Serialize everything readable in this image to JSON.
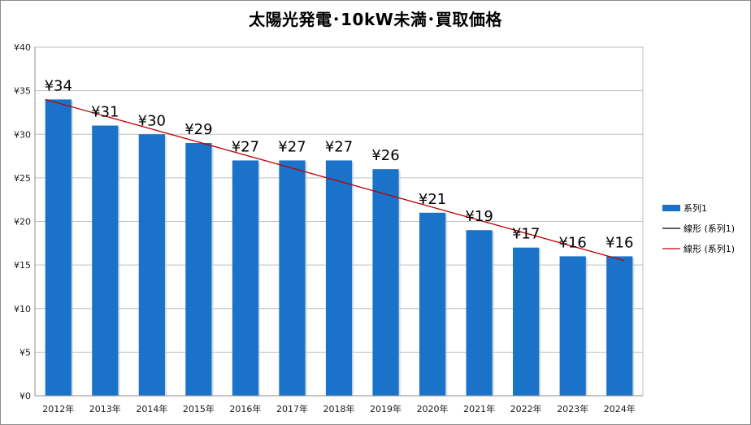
{
  "chart_data": {
    "type": "bar",
    "title": "太陽光発電･10kW未満･買取価格",
    "categories": [
      "2012年",
      "2013年",
      "2014年",
      "2015年",
      "2016年",
      "2017年",
      "2018年",
      "2019年",
      "2020年",
      "2021年",
      "2022年",
      "2023年",
      "2024年"
    ],
    "series": [
      {
        "name": "系列1",
        "values": [
          34,
          31,
          30,
          29,
          27,
          27,
          27,
          26,
          21,
          19,
          17,
          16,
          16
        ],
        "color": "#1a73c8"
      }
    ],
    "data_labels": [
      "¥34",
      "¥31",
      "¥30",
      "¥29",
      "¥27",
      "¥27",
      "¥27",
      "¥26",
      "¥21",
      "¥19",
      "¥17",
      "¥16",
      "¥16"
    ],
    "trendlines": [
      {
        "name": "線形 (系列1)",
        "color": "#000000"
      },
      {
        "name": "線形 (系列1)",
        "color": "#c00000",
        "start_value": 34,
        "end_value": 15.5
      }
    ],
    "y_ticks": [
      "¥0",
      "¥5",
      "¥10",
      "¥15",
      "¥20",
      "¥25",
      "¥30",
      "¥35",
      "¥40"
    ],
    "ylim": [
      0,
      40
    ],
    "grid": true,
    "legend_position": "right"
  }
}
